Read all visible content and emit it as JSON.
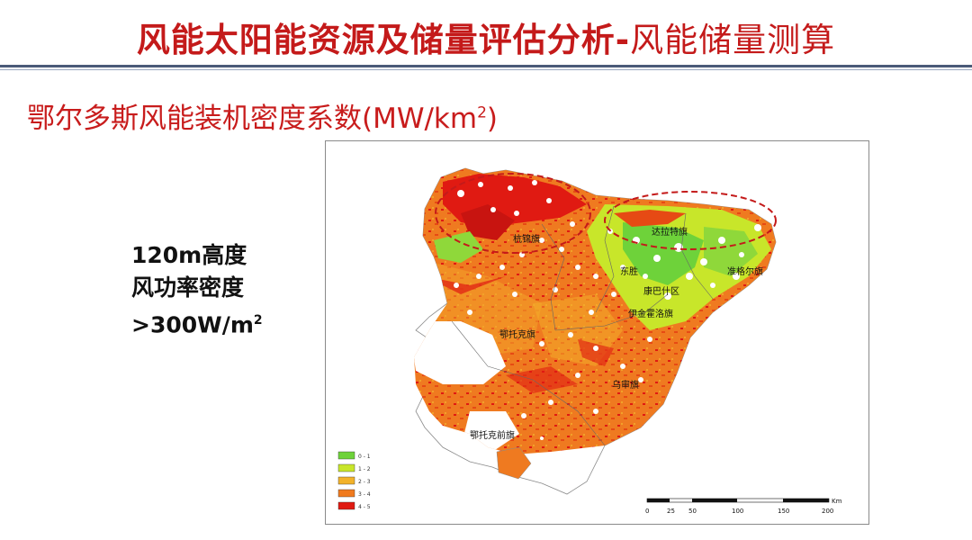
{
  "slide": {
    "title_bold": "风能太阳能资源及储量评估分析-",
    "title_light": "风能储量测算",
    "subtitle_main": "鄂尔多斯风能装机密度系数(MW/km",
    "subtitle_sup": "2",
    "subtitle_close": ")",
    "note_line1": "120m高度",
    "note_line2": "风功率密度",
    "note_line3_main": ">300W/m",
    "note_line3_sup": "2"
  },
  "map": {
    "region_labels": {
      "hangjin": "杭锦旗",
      "dalate": "达拉特旗",
      "dongsheng": "东胜",
      "zhungeer": "准格尔旗",
      "kangbashi": "康巴什区",
      "ejinhuoluo": "伊金霍洛旗",
      "etuoke": "鄂托克旗",
      "wushen": "乌审旗",
      "etuoke_qian": "鄂托克前旗"
    },
    "legend": [
      {
        "label": "0 - 1",
        "color": "#6ed23a"
      },
      {
        "label": "1 - 2",
        "color": "#c8e62a"
      },
      {
        "label": "2 - 3",
        "color": "#f2b22a"
      },
      {
        "label": "3 - 4",
        "color": "#f07a1e"
      },
      {
        "label": "4 - 5",
        "color": "#e01a12"
      }
    ],
    "scale": {
      "unit": "Km",
      "ticks": [
        "0",
        "25",
        "50",
        "100",
        "150",
        "200"
      ]
    },
    "highlight_color": "#c41a1a"
  }
}
